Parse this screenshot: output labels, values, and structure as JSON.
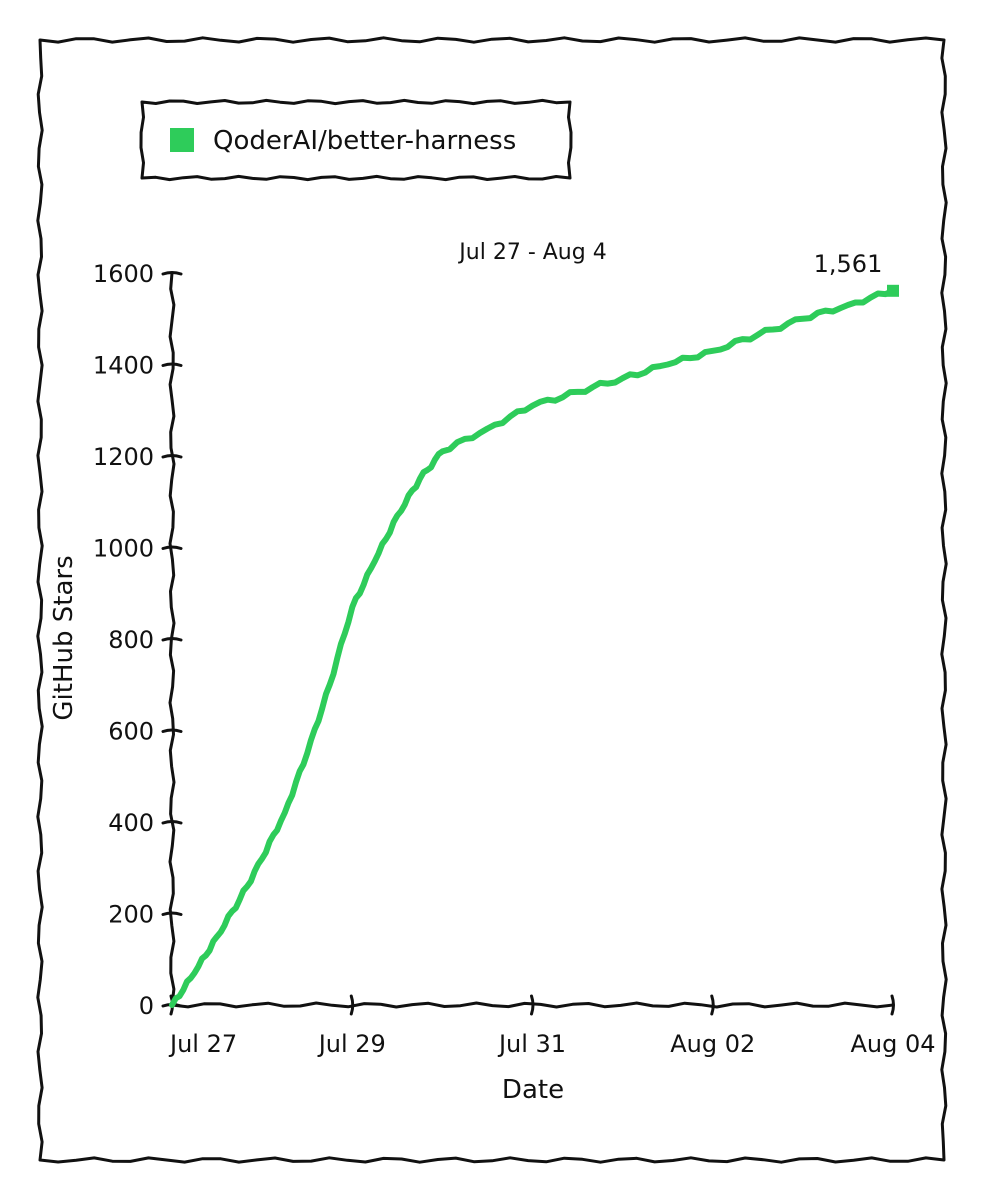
{
  "chart_data": {
    "type": "line",
    "title": "Jul 27 - Aug 4",
    "xlabel": "Date",
    "ylabel": "GitHub Stars",
    "x_tick_labels": [
      "Jul 27",
      "Jul 29",
      "Jul 31",
      "Aug 02",
      "Aug 04"
    ],
    "x_tick_dates": [
      "2025-07-27",
      "2025-07-29",
      "2025-07-31",
      "2025-08-02",
      "2025-08-04"
    ],
    "x_range": [
      "2025-07-27",
      "2025-08-04"
    ],
    "ylim": [
      0,
      1600
    ],
    "y_ticks": [
      0,
      200,
      400,
      600,
      800,
      1000,
      1200,
      1400,
      1600
    ],
    "grid": false,
    "legend_position": "top-left",
    "series": [
      {
        "name": "QoderAI/better-harness",
        "color": "#2ecc5a",
        "points": [
          {
            "x": "2025-07-27",
            "y": 0
          },
          {
            "x": "2025-07-27T06:00",
            "y": 70
          },
          {
            "x": "2025-07-27T12:00",
            "y": 150
          },
          {
            "x": "2025-07-27T18:00",
            "y": 230
          },
          {
            "x": "2025-07-28",
            "y": 320
          },
          {
            "x": "2025-07-28T06:00",
            "y": 420
          },
          {
            "x": "2025-07-28T12:00",
            "y": 550
          },
          {
            "x": "2025-07-28T18:00",
            "y": 700
          },
          {
            "x": "2025-07-29",
            "y": 870
          },
          {
            "x": "2025-07-29T06:00",
            "y": 970
          },
          {
            "x": "2025-07-29T12:00",
            "y": 1070
          },
          {
            "x": "2025-07-29T18:00",
            "y": 1150
          },
          {
            "x": "2025-07-30",
            "y": 1210
          },
          {
            "x": "2025-07-30T12:00",
            "y": 1260
          },
          {
            "x": "2025-07-31",
            "y": 1310
          },
          {
            "x": "2025-07-31T12:00",
            "y": 1340
          },
          {
            "x": "2025-08-01",
            "y": 1370
          },
          {
            "x": "2025-08-01T12:00",
            "y": 1400
          },
          {
            "x": "2025-08-02",
            "y": 1430
          },
          {
            "x": "2025-08-02T12:00",
            "y": 1465
          },
          {
            "x": "2025-08-03",
            "y": 1500
          },
          {
            "x": "2025-08-03T12:00",
            "y": 1530
          },
          {
            "x": "2025-08-04",
            "y": 1561
          }
        ]
      }
    ],
    "end_label": "1,561"
  }
}
